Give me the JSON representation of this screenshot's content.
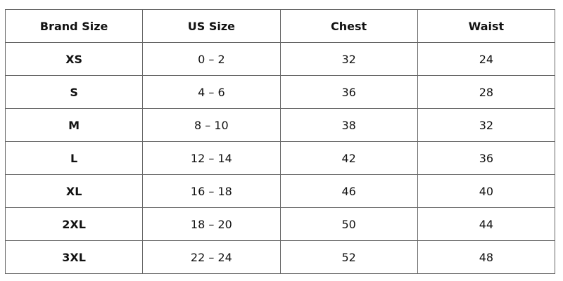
{
  "table": {
    "headers": [
      "Brand Size",
      "US Size",
      "Chest",
      "Waist"
    ],
    "rows": [
      [
        "XS",
        "0 – 2",
        "32",
        "24"
      ],
      [
        "S",
        "4 – 6",
        "36",
        "28"
      ],
      [
        "M",
        "8 – 10",
        "38",
        "32"
      ],
      [
        "L",
        "12 – 14",
        "42",
        "36"
      ],
      [
        "XL",
        "16 – 18",
        "46",
        "40"
      ],
      [
        "2XL",
        "18 – 20",
        "50",
        "44"
      ],
      [
        "3XL",
        "22 – 24",
        "52",
        "48"
      ]
    ]
  }
}
